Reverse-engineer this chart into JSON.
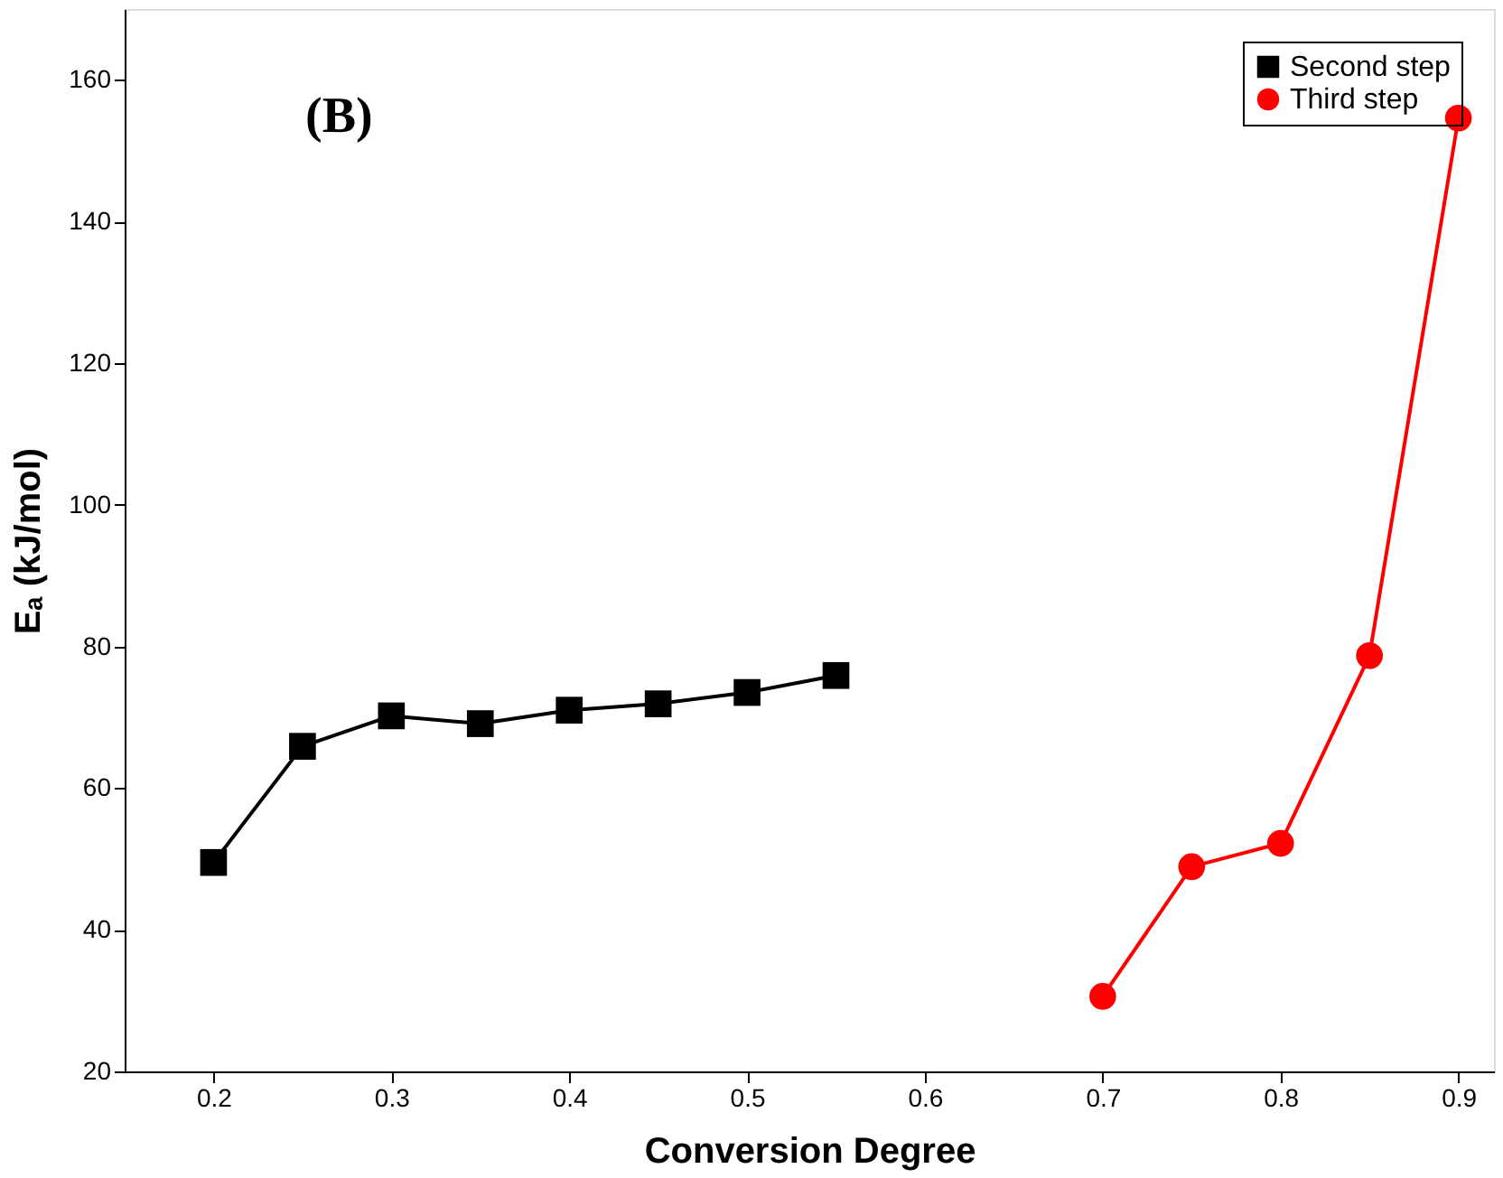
{
  "chart_data": {
    "type": "line",
    "xlabel": "Conversion Degree",
    "ylabel": "Eₐ (kJ/mol)",
    "annotations": [
      "(B)"
    ],
    "xlim": [
      0.15,
      0.92
    ],
    "xticks": [
      0.2,
      0.3,
      0.4,
      0.5,
      0.6,
      0.7,
      0.8,
      0.9
    ],
    "ylim": [
      20,
      170
    ],
    "yticks": [
      20,
      40,
      60,
      80,
      100,
      120,
      140,
      160
    ],
    "legend": "top right",
    "grid": false,
    "series": [
      {
        "name": "Second step",
        "color": "#000000",
        "marker": "square",
        "x": [
          0.2,
          0.25,
          0.3,
          0.35,
          0.4,
          0.45,
          0.5,
          0.55
        ],
        "values": [
          49.5,
          65.9,
          70.2,
          69.1,
          71.0,
          71.9,
          73.5,
          75.9
        ]
      },
      {
        "name": "Third step",
        "color": "#ff0000",
        "marker": "circle",
        "x": [
          0.7,
          0.75,
          0.8,
          0.85,
          0.9
        ],
        "values": [
          30.6,
          48.9,
          52.2,
          78.7,
          154.6
        ]
      }
    ]
  }
}
